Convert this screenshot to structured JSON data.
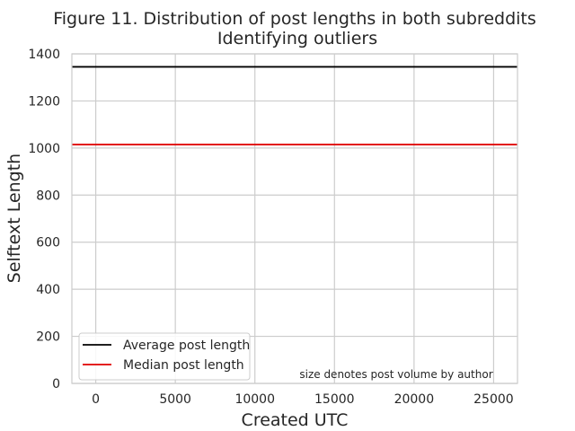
{
  "chart_data": {
    "type": "scatter",
    "title": "Figure 11. Distribution of post lengths in both subreddits",
    "subtitle": "Identifying outliers",
    "xlabel": "Created UTC",
    "ylabel": "Selftext Length",
    "xlim": [
      -1500,
      26500
    ],
    "ylim": [
      0,
      1400
    ],
    "xticks": [
      0,
      5000,
      10000,
      15000,
      20000,
      25000
    ],
    "yticks": [
      0,
      200,
      400,
      600,
      800,
      1000,
      1200,
      1400
    ],
    "grid": true,
    "legend_position": "bottom-left",
    "hlines": [
      {
        "name": "Average post length",
        "y": 1345,
        "color": "#000000"
      },
      {
        "name": "Median post length",
        "y": 1015,
        "color": "#e00000"
      }
    ],
    "annotation": "size denotes post volume by author"
  }
}
